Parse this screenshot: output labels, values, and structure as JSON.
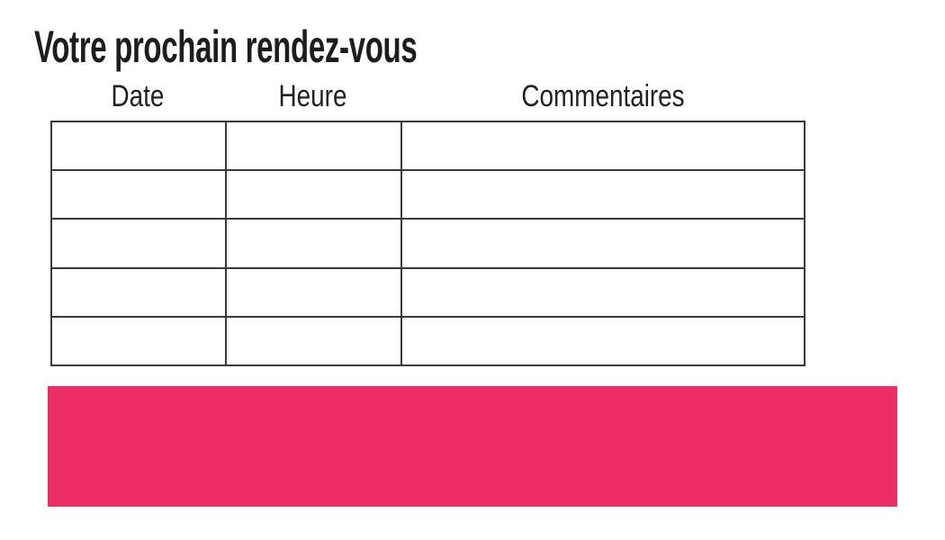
{
  "page": {
    "title": "Votre prochain rendez-vous"
  },
  "table": {
    "headers": [
      "Date",
      "Heure",
      "Commentaires"
    ],
    "rows": [
      [
        "",
        "",
        ""
      ],
      [
        "",
        "",
        ""
      ],
      [
        "",
        "",
        ""
      ],
      [
        "",
        "",
        ""
      ],
      [
        "",
        "",
        ""
      ]
    ]
  },
  "banner": {
    "text": "",
    "color": "#ED2D66"
  },
  "colors": {
    "title_text": "#1F1C1D",
    "header_text": "#232021",
    "table_border": "#242122",
    "background": "#FFFFFF"
  }
}
